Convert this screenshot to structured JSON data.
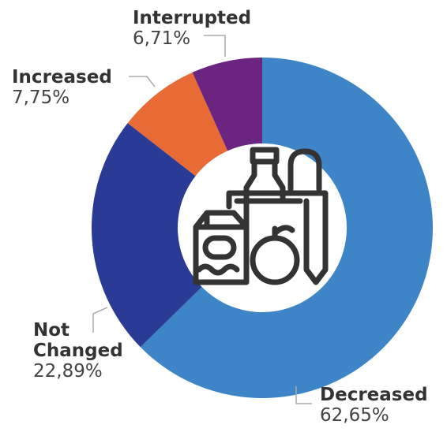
{
  "chart_data": {
    "type": "pie",
    "donut": true,
    "categories": [
      "Decreased",
      "Not Changed",
      "Increased",
      "Interrupted"
    ],
    "values": [
      62.65,
      22.89,
      7.75,
      6.71
    ],
    "value_labels": [
      "62,65%",
      "22,89%",
      "7,75%",
      "6,71%"
    ],
    "colors": [
      "#3d85c6",
      "#2a3b96",
      "#e86a35",
      "#6b2480"
    ]
  }
}
